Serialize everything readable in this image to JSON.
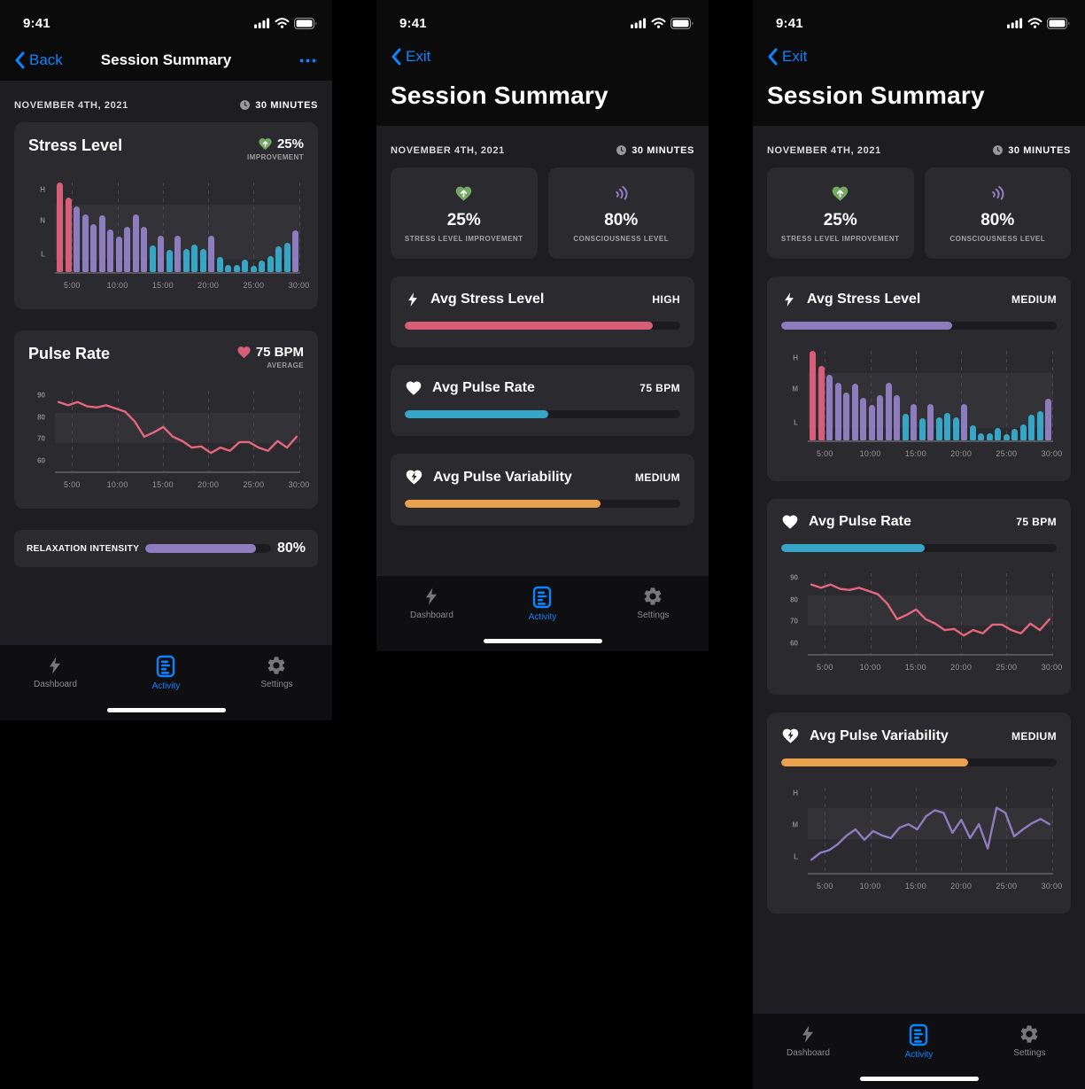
{
  "colors": {
    "accent_blue": "#0a84ff",
    "red": "#d85e77",
    "purple": "#8d7dbe",
    "teal": "#37a5c6",
    "orange": "#e9a14e",
    "green": "#74a863",
    "pink_line": "#e4677f"
  },
  "status": {
    "time": "9:41"
  },
  "tab_bar": {
    "dashboard": "Dashboard",
    "activity": "Activity",
    "settings": "Settings"
  },
  "icons": {
    "back": "chevron-left",
    "menu": "•••",
    "duration": "clock",
    "stress_improvement": "heart-arrow-up",
    "consciousness": "sound-waves",
    "stress": "lightning-bolt",
    "pulse": "heart",
    "variability": "heart-bolt",
    "tab_dashboard": "lightning-bolt",
    "tab_activity": "report-document",
    "tab_settings": "gear"
  },
  "screen1": {
    "back_label": "Back",
    "nav_title": "Session Summary",
    "menu_glyph": "•••",
    "date": "NOVEMBER 4TH, 2021",
    "duration": "30 MINUTES",
    "stress_card": {
      "title": "Stress Level",
      "value": "25%",
      "value_sub": "IMPROVEMENT"
    },
    "pulse_card": {
      "title": "Pulse Rate",
      "value": "75 BPM",
      "value_sub": "AVERAGE"
    },
    "relaxation_card": {
      "label": "RELAXATION INTENSITY",
      "value": "80%",
      "fill_pct": 88,
      "fill_color": "purple"
    }
  },
  "screen2": {
    "back_label": "Exit",
    "title": "Session Summary",
    "date": "NOVEMBER 4TH, 2021",
    "duration": "30 MINUTES",
    "stats": [
      {
        "value": "25%",
        "label": "STRESS LEVEL IMPROVEMENT"
      },
      {
        "value": "80%",
        "label": "CONSCIOUSNESS LEVEL"
      }
    ],
    "metrics": [
      {
        "title": "Avg Stress Level",
        "value": "HIGH",
        "fill_pct": 90,
        "fill_color": "red"
      },
      {
        "title": "Avg Pulse Rate",
        "value": "75 BPM",
        "fill_pct": 52,
        "fill_color": "teal"
      },
      {
        "title": "Avg Pulse Variability",
        "value": "MEDIUM",
        "fill_pct": 71,
        "fill_color": "orange"
      }
    ]
  },
  "screen3": {
    "back_label": "Exit",
    "title": "Session Summary",
    "date": "NOVEMBER 4TH, 2021",
    "duration": "30 MINUTES",
    "stats": [
      {
        "value": "25%",
        "label": "STRESS LEVEL IMPROVEMENT"
      },
      {
        "value": "80%",
        "label": "CONSCIOUSNESS LEVEL"
      }
    ],
    "metrics": [
      {
        "title": "Avg Stress Level",
        "value": "MEDIUM",
        "fill_pct": 62,
        "fill_color": "purple"
      },
      {
        "title": "Avg Pulse Rate",
        "value": "75 BPM",
        "fill_pct": 52,
        "fill_color": "teal"
      },
      {
        "title": "Avg Pulse Variability",
        "value": "MEDIUM",
        "fill_pct": 68,
        "fill_color": "orange"
      }
    ]
  },
  "chart_data": [
    {
      "type": "bar",
      "title": "Stress Level over session (screen 1)",
      "ymin": 0,
      "ymax": 102,
      "y_tick_labels": [
        {
          "text": "H",
          "v": 92
        },
        {
          "text": "N",
          "v": 57
        },
        {
          "text": "L",
          "v": 20
        }
      ],
      "x_tick_labels": [
        "5:00",
        "10:00",
        "15:00",
        "20:00",
        "25:00",
        "30:00"
      ],
      "grid_x": [
        0.07,
        0.255,
        0.44,
        0.625,
        0.81,
        0.995
      ],
      "band": [
        14,
        75
      ],
      "values": [
        100,
        83,
        73,
        64,
        53,
        63,
        48,
        40,
        51,
        64,
        51,
        30,
        41,
        25,
        41,
        26,
        31,
        26,
        41,
        17,
        8,
        8,
        14,
        7,
        13,
        18,
        29,
        33,
        47
      ],
      "bar_colors": [
        "red",
        "red",
        "purple",
        "purple",
        "purple",
        "purple",
        "purple",
        "purple",
        "purple",
        "purple",
        "purple",
        "teal",
        "purple",
        "teal",
        "purple",
        "teal",
        "teal",
        "teal",
        "purple",
        "teal",
        "teal",
        "teal",
        "teal",
        "teal",
        "teal",
        "teal",
        "teal",
        "teal",
        "purple"
      ]
    },
    {
      "type": "line",
      "title": "Pulse Rate (BPM) over session",
      "ymin": 55,
      "ymax": 93,
      "y_tick_labels": [
        {
          "text": "90",
          "v": 90
        },
        {
          "text": "80",
          "v": 80
        },
        {
          "text": "70",
          "v": 70
        },
        {
          "text": "60",
          "v": 60
        }
      ],
      "x_tick_labels": [
        "5:00",
        "10:00",
        "15:00",
        "20:00",
        "25:00",
        "30:00"
      ],
      "grid_x": [
        0.07,
        0.255,
        0.44,
        0.625,
        0.81,
        0.995
      ],
      "band": [
        68,
        82
      ],
      "values": [
        87,
        85.5,
        87,
        85,
        84.5,
        85.5,
        84,
        82.5,
        78,
        71,
        73,
        75.5,
        71,
        69,
        66,
        66.5,
        63.5,
        66,
        64.5,
        68.5,
        68.5,
        66,
        64.5,
        69,
        66,
        71
      ],
      "line_color": "pink_line"
    },
    {
      "type": "bar",
      "title": "Avg Stress Level over session (screen 3)",
      "ymin": 0,
      "ymax": 102,
      "y_tick_labels": [
        {
          "text": "H",
          "v": 92
        },
        {
          "text": "M",
          "v": 57
        },
        {
          "text": "L",
          "v": 20
        }
      ],
      "x_tick_labels": [
        "5:00",
        "10:00",
        "15:00",
        "20:00",
        "25:00",
        "30:00"
      ],
      "grid_x": [
        0.07,
        0.255,
        0.44,
        0.625,
        0.81,
        0.995
      ],
      "band": [
        14,
        75
      ],
      "values": [
        100,
        83,
        73,
        64,
        53,
        63,
        48,
        40,
        51,
        64,
        51,
        30,
        41,
        25,
        41,
        26,
        31,
        26,
        41,
        17,
        8,
        8,
        14,
        7,
        13,
        18,
        29,
        33,
        47
      ],
      "bar_colors": [
        "red",
        "red",
        "purple",
        "purple",
        "purple",
        "purple",
        "purple",
        "purple",
        "purple",
        "purple",
        "purple",
        "teal",
        "purple",
        "teal",
        "purple",
        "teal",
        "teal",
        "teal",
        "purple",
        "teal",
        "teal",
        "teal",
        "teal",
        "teal",
        "teal",
        "teal",
        "teal",
        "teal",
        "purple"
      ]
    },
    {
      "type": "line",
      "title": "Avg Pulse Variability over session",
      "ymin": 0,
      "ymax": 100,
      "y_tick_labels": [
        {
          "text": "H",
          "v": 92
        },
        {
          "text": "M",
          "v": 55
        },
        {
          "text": "L",
          "v": 18
        }
      ],
      "x_tick_labels": [
        "5:00",
        "10:00",
        "15:00",
        "20:00",
        "25:00",
        "30:00"
      ],
      "grid_x": [
        0.07,
        0.255,
        0.44,
        0.625,
        0.81,
        0.995
      ],
      "band": [
        39,
        74
      ],
      "values": [
        15,
        23,
        26,
        33,
        43,
        50,
        38,
        48,
        43,
        40,
        52,
        56,
        50,
        65,
        72,
        69,
        46,
        61,
        40,
        56,
        28,
        75,
        69,
        42,
        50,
        57,
        62,
        56
      ],
      "line_color": "purple"
    }
  ]
}
